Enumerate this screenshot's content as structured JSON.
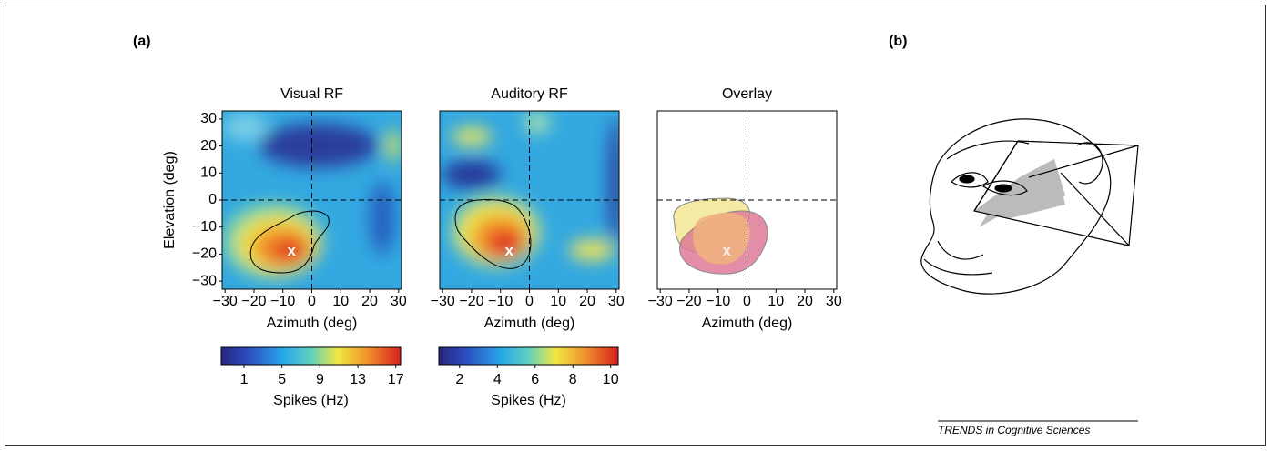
{
  "figure": {
    "panel_a_label": "(a)",
    "panel_b_label": "(b)",
    "credit": "TRENDS in Cognitive Sciences"
  },
  "chart_data": [
    {
      "type": "heatmap",
      "title": "Visual RF",
      "x_label": "Azimuth (deg)",
      "y_label": "Elevation (deg)",
      "xlim": [
        -31,
        31
      ],
      "ylim": [
        -33,
        33
      ],
      "xticks": [
        {
          "value": -30,
          "label": "−30"
        },
        {
          "value": -20,
          "label": "−20"
        },
        {
          "value": -10,
          "label": "−10"
        },
        0,
        10,
        20,
        30
      ],
      "yticks": [
        30,
        20,
        10,
        0,
        {
          "value": -10,
          "label": "−10"
        },
        {
          "value": -20,
          "label": "−20"
        },
        {
          "value": -30,
          "label": "−30"
        }
      ],
      "peak": {
        "x": -7,
        "y": -19,
        "label": "x"
      },
      "colorbar": {
        "label": "Spikes (Hz)",
        "lim": [
          -1.4,
          17.5
        ],
        "ticks": [
          1,
          5,
          9,
          13,
          17
        ]
      }
    },
    {
      "type": "heatmap",
      "title": "Auditory RF",
      "x_label": "Azimuth (deg)",
      "xlim": [
        -31,
        31
      ],
      "ylim": [
        -33,
        33
      ],
      "xticks": [
        {
          "value": -30,
          "label": "−30"
        },
        {
          "value": -20,
          "label": "−20"
        },
        {
          "value": -10,
          "label": "−10"
        },
        0,
        10,
        20,
        30
      ],
      "peak": {
        "x": -7,
        "y": -19,
        "label": "x"
      },
      "colorbar": {
        "label": "Spikes (Hz)",
        "lim": [
          0.9,
          10.4
        ],
        "ticks": [
          2,
          4,
          6,
          8,
          10
        ]
      }
    },
    {
      "type": "overlay",
      "title": "Overlay",
      "x_label": "Azimuth (deg)",
      "xlim": [
        -31,
        31
      ],
      "ylim": [
        -33,
        33
      ],
      "xticks": [
        {
          "value": -30,
          "label": "−30"
        },
        {
          "value": -20,
          "label": "−20"
        },
        {
          "value": -10,
          "label": "−10"
        },
        0,
        10,
        20,
        30
      ],
      "peak": {
        "x": -7,
        "y": -19,
        "label": "x"
      }
    }
  ]
}
